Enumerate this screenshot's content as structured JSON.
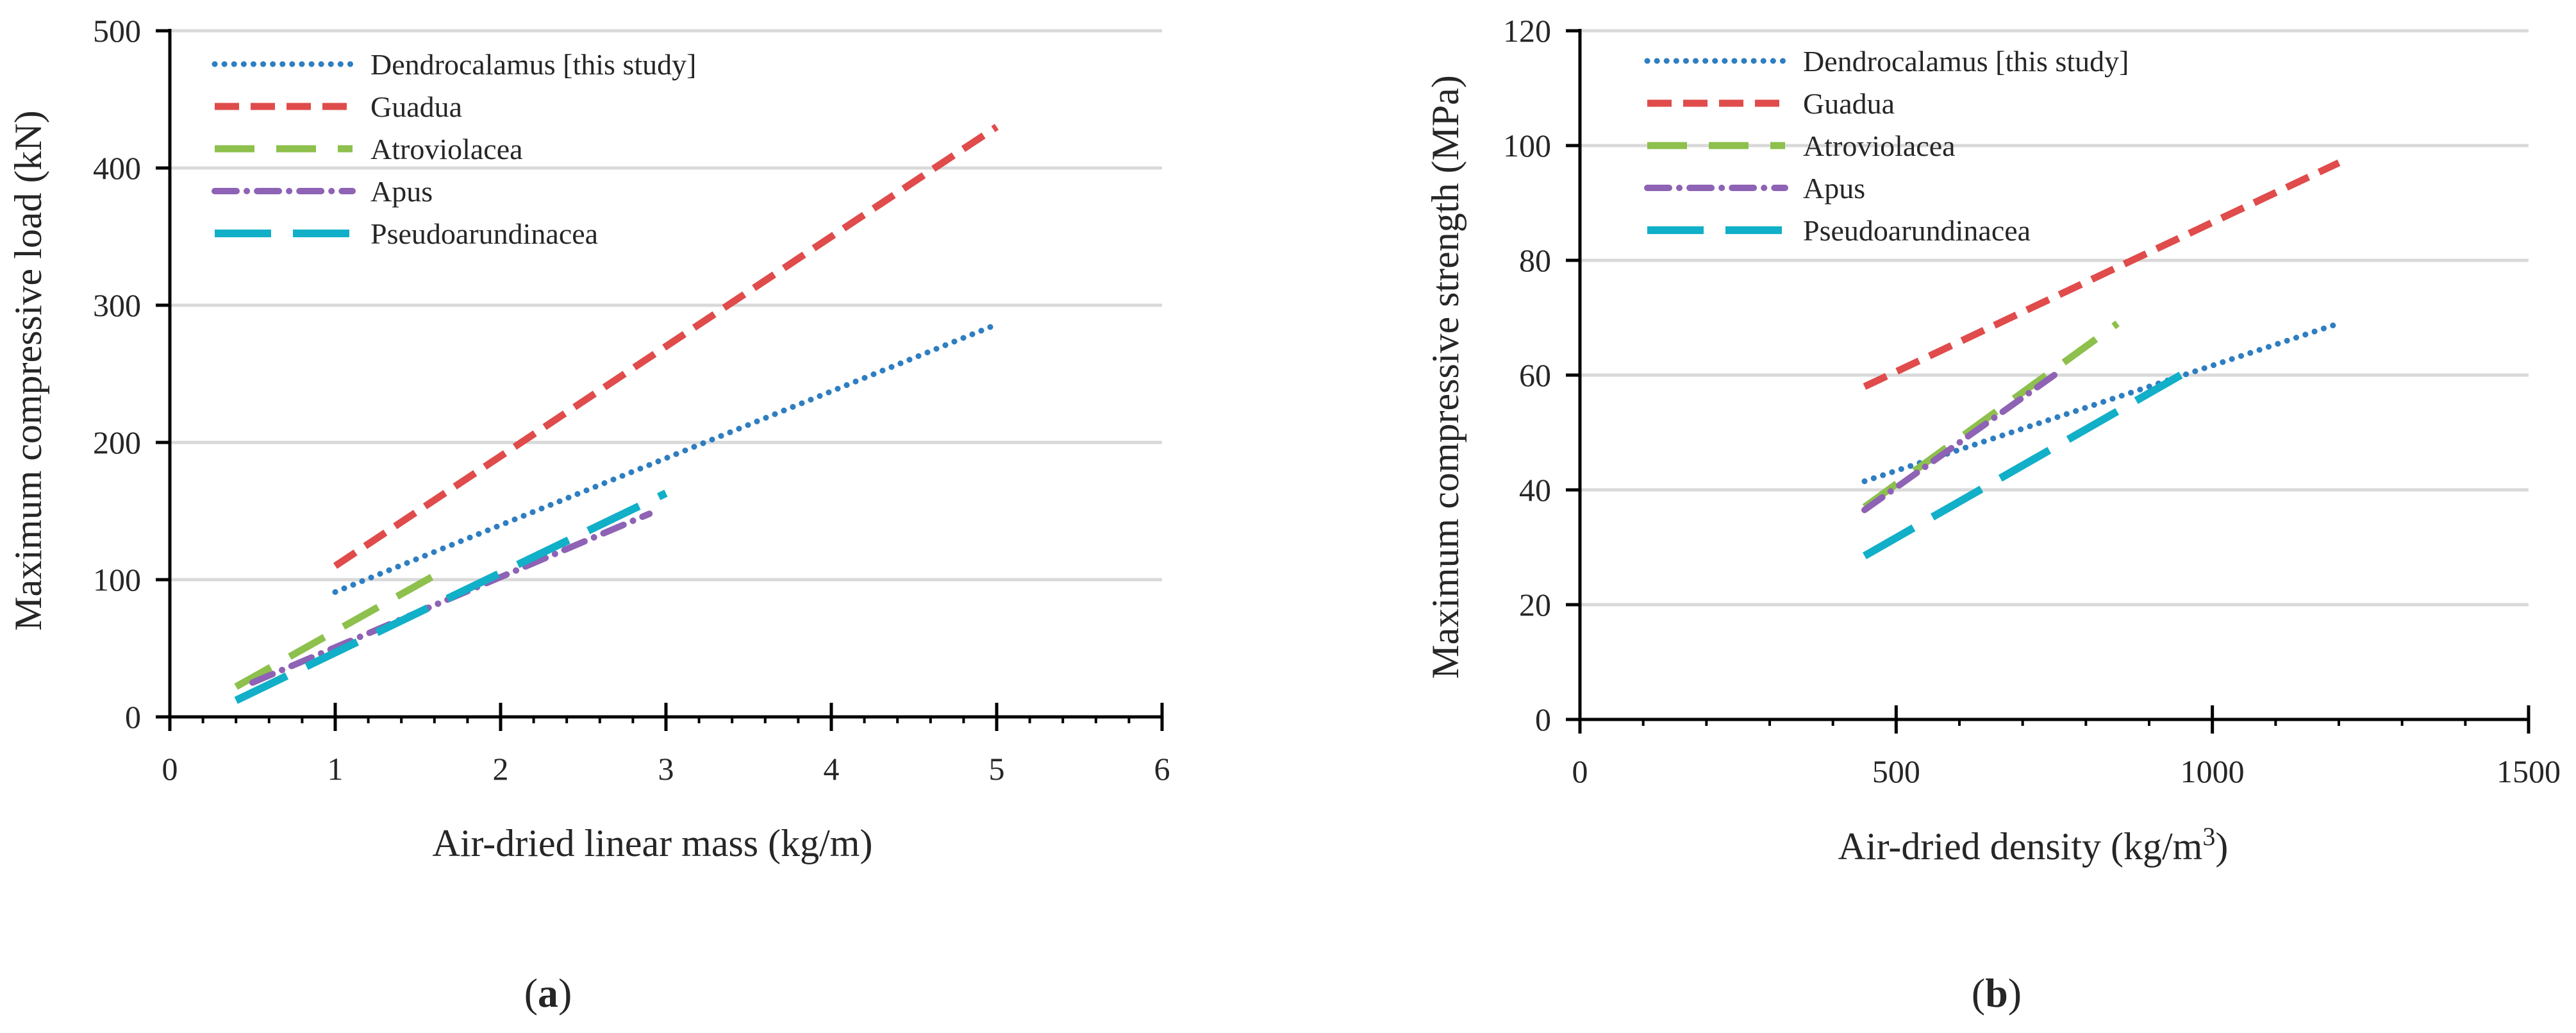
{
  "chart_data": [
    {
      "type": "line",
      "panel_label": {
        "open": "(",
        "letter": "a",
        "close": ")"
      },
      "title": "",
      "xlabel": "Air-dried linear mass (kg/m)",
      "ylabel": "Maximum compressive load (kN)",
      "xlim": [
        0,
        6
      ],
      "ylim": [
        0,
        500
      ],
      "x_ticks": [
        0,
        1,
        2,
        3,
        4,
        5,
        6
      ],
      "x_minor_step": 0.2,
      "y_ticks": [
        0,
        100,
        200,
        300,
        400,
        500
      ],
      "grid": "horizontal",
      "legend_position": "top-left",
      "series": [
        {
          "name": "Dendrocalamus [this study]",
          "color": "#2E7EC1",
          "dash": "dotted",
          "x": [
            1.0,
            5.0
          ],
          "y": [
            91,
            286
          ]
        },
        {
          "name": "Guadua",
          "color": "#E04B4B",
          "dash": "dashed",
          "x": [
            1.0,
            5.0
          ],
          "y": [
            110,
            430
          ]
        },
        {
          "name": "Atroviolacea",
          "color": "#8DC04C",
          "dash": "long-dashed",
          "x": [
            0.4,
            1.6
          ],
          "y": [
            22,
            103
          ]
        },
        {
          "name": "Apus",
          "color": "#8E62B4",
          "dash": "dash-dot",
          "x": [
            0.5,
            2.9
          ],
          "y": [
            25,
            148
          ]
        },
        {
          "name": "Pseudoarundinacea",
          "color": "#11AFC8",
          "dash": "long-dash",
          "x": [
            0.4,
            3.0
          ],
          "y": [
            12,
            163
          ]
        }
      ]
    },
    {
      "type": "line",
      "panel_label": {
        "open": "(",
        "letter": "b",
        "close": ")"
      },
      "title": "",
      "xlabel": "Air-dried density (kg/m",
      "xlabel_superscript": "3",
      "xlabel_suffix": ")",
      "ylabel": "Maximum compressive strength (MPa)",
      "xlim": [
        0,
        1500
      ],
      "ylim": [
        0,
        120
      ],
      "x_ticks": [
        0,
        500,
        1000,
        1500
      ],
      "x_minor_step": 100,
      "y_ticks": [
        0,
        20,
        40,
        60,
        80,
        100,
        120
      ],
      "grid": "horizontal",
      "legend_position": "top-left",
      "series": [
        {
          "name": "Dendrocalamus [this study]",
          "color": "#2E7EC1",
          "dash": "dotted",
          "x": [
            450,
            1200
          ],
          "y": [
            41.5,
            69
          ]
        },
        {
          "name": "Guadua",
          "color": "#E04B4B",
          "dash": "dashed",
          "x": [
            450,
            1200
          ],
          "y": [
            58,
            97
          ]
        },
        {
          "name": "Atroviolacea",
          "color": "#8DC04C",
          "dash": "long-dashed",
          "x": [
            450,
            850
          ],
          "y": [
            37,
            69
          ]
        },
        {
          "name": "Apus",
          "color": "#8E62B4",
          "dash": "dash-dot",
          "x": [
            450,
            750
          ],
          "y": [
            36.5,
            60
          ]
        },
        {
          "name": "Pseudoarundinacea",
          "color": "#11AFC8",
          "dash": "long-dash",
          "x": [
            450,
            950
          ],
          "y": [
            28.5,
            60
          ]
        }
      ]
    }
  ]
}
